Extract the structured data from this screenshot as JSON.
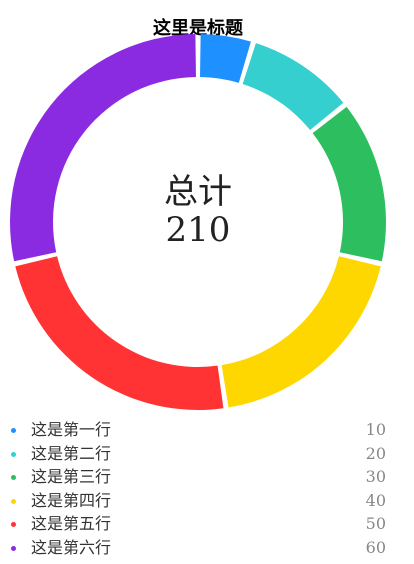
{
  "chart_data": {
    "type": "pie",
    "title": "这里是标题",
    "center": {
      "top": "总计",
      "bottom": "210"
    },
    "categories": [
      "这是第一行",
      "这是第二行",
      "这是第三行",
      "这是第四行",
      "这是第五行",
      "这是第六行"
    ],
    "values": [
      10,
      20,
      30,
      40,
      50,
      60
    ],
    "colors": [
      "#1e90ff",
      "#36cfcf",
      "#2dbe60",
      "#ffd700",
      "#ff3333",
      "#8a2be2"
    ],
    "legend_position": "bottom"
  }
}
